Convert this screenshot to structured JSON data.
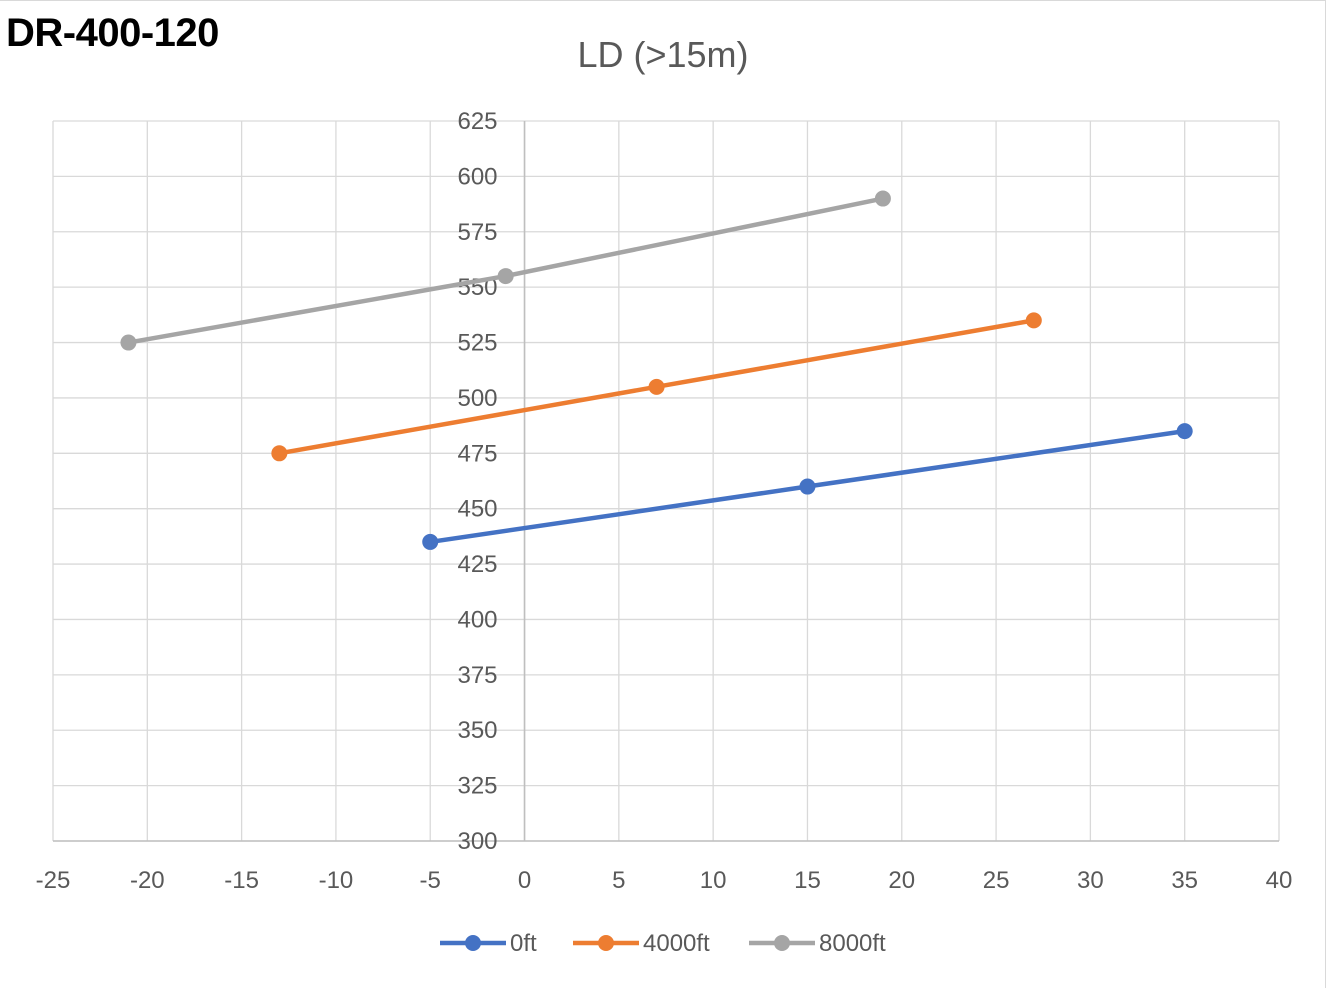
{
  "document": {
    "heading": "DR-400-120"
  },
  "chart_data": {
    "type": "scatter",
    "title": "LD (>15m)",
    "xlabel": "",
    "ylabel": "",
    "xlim": [
      -25,
      40
    ],
    "ylim": [
      300,
      625
    ],
    "x_ticks": [
      -25,
      -20,
      -15,
      -10,
      -5,
      0,
      5,
      10,
      15,
      20,
      25,
      30,
      35,
      40
    ],
    "y_ticks": [
      300,
      325,
      350,
      375,
      400,
      425,
      450,
      475,
      500,
      525,
      550,
      575,
      600,
      625
    ],
    "grid": true,
    "legend_position": "bottom",
    "series": [
      {
        "name": "0ft",
        "color": "#4472C4",
        "points": [
          [
            -5,
            435
          ],
          [
            15,
            460
          ],
          [
            35,
            485
          ]
        ]
      },
      {
        "name": "4000ft",
        "color": "#ED7D31",
        "points": [
          [
            -13,
            475
          ],
          [
            7,
            505
          ],
          [
            27,
            535
          ]
        ]
      },
      {
        "name": "8000ft",
        "color": "#A5A5A5",
        "points": [
          [
            -21,
            525
          ],
          [
            -1,
            555
          ],
          [
            19,
            590
          ]
        ]
      }
    ]
  }
}
